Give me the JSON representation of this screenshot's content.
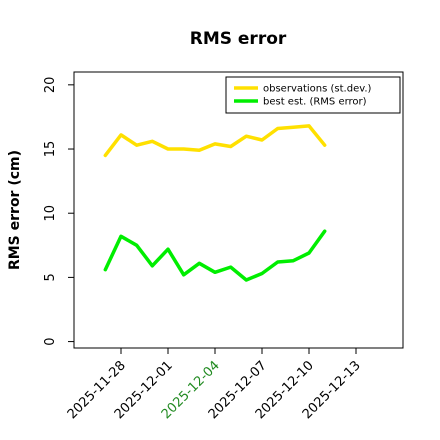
{
  "chart_data": {
    "type": "line",
    "title": "RMS error",
    "xlabel": "",
    "ylabel": "RMS error (cm)",
    "ylim": [
      -0.5,
      21
    ],
    "yticks": [
      0,
      5,
      10,
      15,
      20
    ],
    "xlim": [
      "2025-11-25",
      "2025-12-16"
    ],
    "xticks": [
      {
        "date": "2025-11-28",
        "label": "2025-11-28",
        "color": "#000000"
      },
      {
        "date": "2025-12-01",
        "label": "2025-12-01",
        "color": "#000000"
      },
      {
        "date": "2025-12-04",
        "label": "2025-12-04",
        "color": "#228B22"
      },
      {
        "date": "2025-12-07",
        "label": "2025-12-07",
        "color": "#000000"
      },
      {
        "date": "2025-12-10",
        "label": "2025-12-10",
        "color": "#000000"
      },
      {
        "date": "2025-12-13",
        "label": "2025-12-13",
        "color": "#000000"
      }
    ],
    "grid": false,
    "legend_position": "top-right",
    "x": [
      "2025-11-27",
      "2025-11-28",
      "2025-11-29",
      "2025-11-30",
      "2025-12-01",
      "2025-12-02",
      "2025-12-03",
      "2025-12-04",
      "2025-12-05",
      "2025-12-06",
      "2025-12-07",
      "2025-12-08",
      "2025-12-09",
      "2025-12-10",
      "2025-12-11"
    ],
    "series": [
      {
        "name": "observations (st.dev.)",
        "color": "#FFE000",
        "values": [
          14.5,
          16.1,
          15.3,
          15.6,
          15.0,
          15.0,
          14.9,
          15.4,
          15.2,
          16.0,
          15.7,
          16.6,
          16.7,
          16.8,
          15.3
        ]
      },
      {
        "name": "best est. (RMS error)",
        "color": "#00EE00",
        "values": [
          5.6,
          8.2,
          7.5,
          5.9,
          7.2,
          5.2,
          6.1,
          5.4,
          5.8,
          4.8,
          5.3,
          6.2,
          6.3,
          6.9,
          8.6
        ]
      }
    ]
  }
}
